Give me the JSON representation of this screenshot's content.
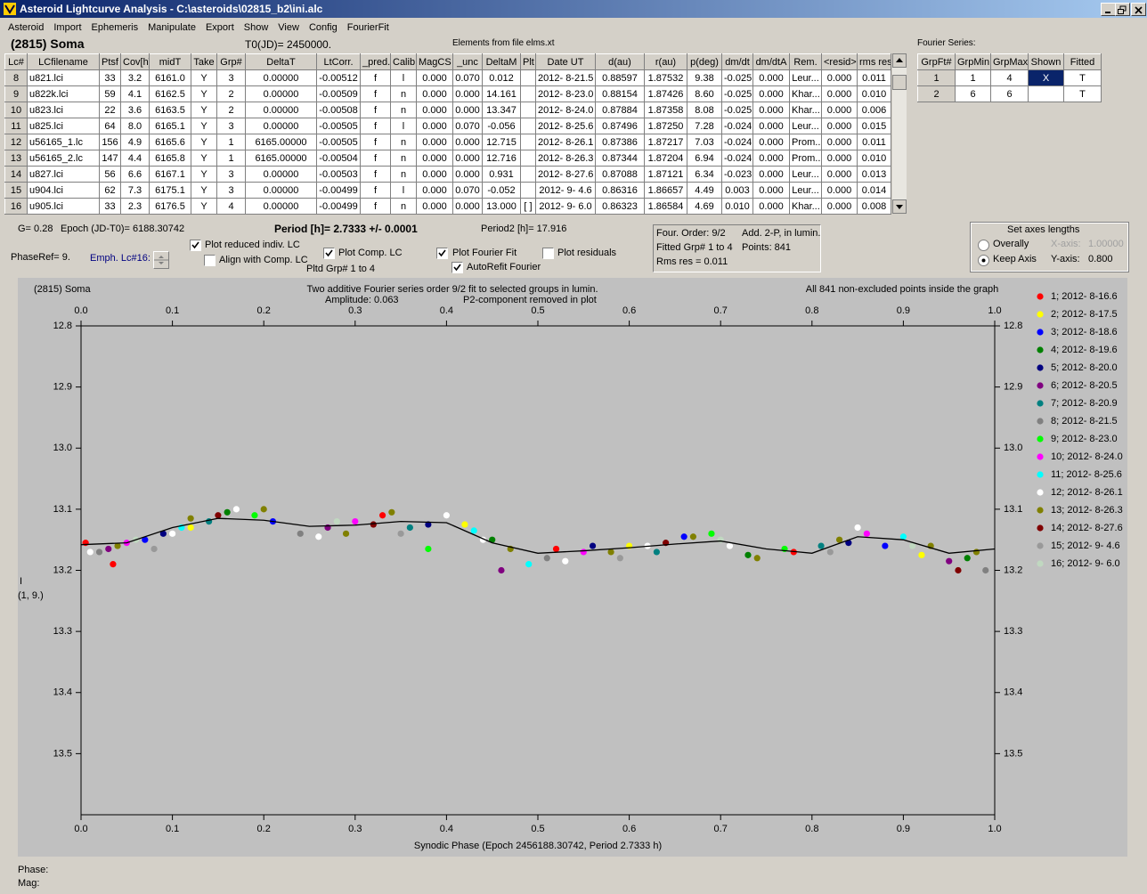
{
  "window": {
    "title": "Asteroid Lightcurve Analysis - C:\\asteroids\\02815_b2\\ini.alc"
  },
  "menu": [
    "Asteroid",
    "Import",
    "Ephemeris",
    "Manipulate",
    "Export",
    "Show",
    "View",
    "Config",
    "FourierFit"
  ],
  "header": {
    "asteroid": "(2815) Soma",
    "t0": "T0(JD)= 2450000.",
    "elements": "Elements from file elms.xt",
    "fourier_label": "Fourier Series:"
  },
  "table": {
    "columns": [
      "Lc#",
      "LCfilename",
      "Ptsf",
      "Cov[h]",
      "midT",
      "Take",
      "Grp#",
      "DeltaT",
      "LtCorr.",
      "_pred.",
      "Calib",
      "MagCS",
      "_unc",
      "DeltaM",
      "Plt",
      "Date UT",
      "d(au)",
      "r(au)",
      "p(deg)",
      "dm/dt",
      "dm/dtA",
      "Rem.",
      "<resid>",
      "rms res"
    ],
    "rows": [
      [
        "8",
        "u821.lci",
        "33",
        "3.2",
        "6161.0",
        "Y",
        "3",
        "0.00000",
        "-0.00512",
        "f",
        "l",
        "0.000",
        "0.070",
        "0.012",
        null,
        "2012- 8-21.5",
        "0.88597",
        "1.87532",
        "9.38",
        "-0.025",
        "0.000",
        "Leur...",
        "0.000",
        "0.011"
      ],
      [
        "9",
        "u822k.lci",
        "59",
        "4.1",
        "6162.5",
        "Y",
        "2",
        "0.00000",
        "-0.00509",
        "f",
        "n",
        "0.000",
        "0.000",
        "14.161",
        null,
        "2012- 8-23.0",
        "0.88154",
        "1.87426",
        "8.60",
        "-0.025",
        "0.000",
        "Khar...",
        "0.000",
        "0.010"
      ],
      [
        "10",
        "u823.lci",
        "22",
        "3.6",
        "6163.5",
        "Y",
        "2",
        "0.00000",
        "-0.00508",
        "f",
        "n",
        "0.000",
        "0.000",
        "13.347",
        null,
        "2012- 8-24.0",
        "0.87884",
        "1.87358",
        "8.08",
        "-0.025",
        "0.000",
        "Khar...",
        "0.000",
        "0.006"
      ],
      [
        "11",
        "u825.lci",
        "64",
        "8.0",
        "6165.1",
        "Y",
        "3",
        "0.00000",
        "-0.00505",
        "f",
        "l",
        "0.000",
        "0.070",
        "-0.056",
        null,
        "2012- 8-25.6",
        "0.87496",
        "1.87250",
        "7.28",
        "-0.024",
        "0.000",
        "Leur...",
        "0.000",
        "0.015"
      ],
      [
        "12",
        "u56165_1.lc",
        "156",
        "4.9",
        "6165.6",
        "Y",
        "1",
        "6165.00000",
        "-0.00505",
        "f",
        "n",
        "0.000",
        "0.000",
        "12.715",
        null,
        "2012- 8-26.1",
        "0.87386",
        "1.87217",
        "7.03",
        "-0.024",
        "0.000",
        "Prom...",
        "0.000",
        "0.011"
      ],
      [
        "13",
        "u56165_2.lc",
        "147",
        "4.4",
        "6165.8",
        "Y",
        "1",
        "6165.00000",
        "-0.00504",
        "f",
        "n",
        "0.000",
        "0.000",
        "12.716",
        null,
        "2012- 8-26.3",
        "0.87344",
        "1.87204",
        "6.94",
        "-0.024",
        "0.000",
        "Prom...",
        "0.000",
        "0.010"
      ],
      [
        "14",
        "u827.lci",
        "56",
        "6.6",
        "6167.1",
        "Y",
        "3",
        "0.00000",
        "-0.00503",
        "f",
        "n",
        "0.000",
        "0.000",
        "0.931",
        null,
        "2012- 8-27.6",
        "0.87088",
        "1.87121",
        "6.34",
        "-0.023",
        "0.000",
        "Leur...",
        "0.000",
        "0.013"
      ],
      [
        "15",
        "u904.lci",
        "62",
        "7.3",
        "6175.1",
        "Y",
        "3",
        "0.00000",
        "-0.00499",
        "f",
        "l",
        "0.000",
        "0.070",
        "-0.052",
        null,
        "2012- 9- 4.6",
        "0.86316",
        "1.86657",
        "4.49",
        "0.003",
        "0.000",
        "Leur...",
        "0.000",
        "0.014"
      ],
      [
        "16",
        "u905.lci",
        "33",
        "2.3",
        "6176.5",
        "Y",
        "4",
        "0.00000",
        "-0.00499",
        "f",
        "n",
        "0.000",
        "0.000",
        "13.000",
        "[ ]",
        "2012- 9- 6.0",
        "0.86323",
        "1.86584",
        "4.69",
        "0.010",
        "0.000",
        "Khar...",
        "0.000",
        "0.008"
      ]
    ]
  },
  "fourier_table": {
    "columns": [
      "GrpFt#",
      "GrpMin",
      "GrpMax",
      "Shown",
      "Fitted"
    ],
    "rows": [
      [
        "1",
        "1",
        "4",
        "X",
        "T"
      ],
      [
        "2",
        "6",
        "6",
        null,
        "T"
      ]
    ]
  },
  "info": {
    "g": "G= 0.28",
    "epoch": "Epoch (JD-T0)= 6188.30742",
    "period": "Period [h]= 2.7333 +/- 0.0001",
    "period2": "Period2 [h]= 17.916",
    "phaseref": "PhaseRef= 9.",
    "emph": "Emph. Lc#16:",
    "pltd_grp": "Pltd Grp#  1  to  4"
  },
  "controls": [
    {
      "label": "Plot reduced indiv. LC",
      "checked": true
    },
    {
      "label": "Align with Comp. LC",
      "checked": false
    },
    {
      "label": "Plot Comp. LC",
      "checked": true
    },
    {
      "label": "Plot Fourier Fit",
      "checked": true
    },
    {
      "label": "AutoRefit Fourier",
      "checked": true
    },
    {
      "label": "Plot residuals",
      "checked": false
    }
  ],
  "fit_box": {
    "order": "Four. Order:  9/2",
    "mode": "Add. 2-P, in lumin.",
    "fitted": "Fitted Grp# 1 to 4",
    "points": "Points: 841",
    "rms": "Rms res     = 0.011"
  },
  "axes_box": {
    "title": "Set axes lengths",
    "options": [
      {
        "label": "Overally",
        "checked": false
      },
      {
        "label": "Keep Axis",
        "checked": true
      }
    ],
    "x_label": "X-axis:",
    "x_value": "1.00000",
    "y_label": "Y-axis:",
    "y_value": "0.800"
  },
  "status": {
    "phase": "Phase:",
    "mag": "Mag:"
  },
  "chart_data": {
    "type": "scatter",
    "title": "(2815) Soma",
    "subtitle": "Two additive Fourier series order 9/2 fit to selected groups in lumin.",
    "annotations": [
      "Amplitude: 0.063",
      "P2-component removed in plot",
      "All 841 non-excluded points inside the graph"
    ],
    "x_label": "Synodic Phase (Epoch 2456188.30742, Period 2.7333 h)",
    "y_label": "I",
    "y_label2": "(1, 9.)",
    "xlim": [
      0,
      1
    ],
    "ylim": [
      12.8,
      13.6
    ],
    "y_inverted": true,
    "grid": false,
    "xticks": [
      {
        "value": 0,
        "label": "0.0"
      },
      0.1,
      0.2,
      0.3,
      0.4,
      0.5,
      0.6,
      0.7,
      0.8,
      0.9,
      {
        "value": 1,
        "label": "1.0"
      }
    ],
    "yticks": [
      12.8,
      12.9,
      {
        "value": 13,
        "label": "13.0"
      },
      13.1,
      13.2,
      13.3,
      13.4,
      13.5
    ],
    "curve": {
      "color": "#000000",
      "x": [
        0,
        0.05,
        0.1,
        0.15,
        0.2,
        0.25,
        0.3,
        0.35,
        0.4,
        0.45,
        0.5,
        0.55,
        0.6,
        0.65,
        0.7,
        0.75,
        0.8,
        0.85,
        0.9,
        0.95,
        1
      ],
      "values": [
        13.158,
        13.155,
        13.13,
        13.115,
        13.118,
        13.128,
        13.126,
        13.12,
        13.122,
        13.155,
        13.172,
        13.168,
        13.163,
        13.157,
        13.152,
        13.165,
        13.172,
        13.145,
        13.15,
        13.172,
        13.165
      ]
    },
    "series": [
      {
        "name": "1; 2012- 8-16.6",
        "color": "#ff0000",
        "x": [
          0.005,
          0.035,
          0.33,
          0.52,
          0.78
        ],
        "values": [
          13.155,
          13.19,
          13.11,
          13.165,
          13.17
        ]
      },
      {
        "name": "2; 2012- 8-17.5",
        "color": "#ffff00",
        "x": [
          0.12,
          0.42,
          0.6,
          0.92
        ],
        "values": [
          13.13,
          13.125,
          13.16,
          13.175
        ]
      },
      {
        "name": "3; 2012- 8-18.6",
        "color": "#0000ff",
        "x": [
          0.07,
          0.21,
          0.66,
          0.88
        ],
        "values": [
          13.15,
          13.12,
          13.145,
          13.16
        ]
      },
      {
        "name": "4; 2012- 8-19.6",
        "color": "#008000",
        "x": [
          0.16,
          0.45,
          0.73,
          0.97
        ],
        "values": [
          13.105,
          13.15,
          13.175,
          13.18
        ]
      },
      {
        "name": "5; 2012- 8-20.0",
        "color": "#000080",
        "x": [
          0.09,
          0.38,
          0.56,
          0.84
        ],
        "values": [
          13.14,
          13.125,
          13.16,
          13.155
        ]
      },
      {
        "name": "6; 2012- 8-20.5",
        "color": "#800080",
        "x": [
          0.03,
          0.27,
          0.46,
          0.95
        ],
        "values": [
          13.165,
          13.13,
          13.2,
          13.185
        ]
      },
      {
        "name": "7; 2012- 8-20.9",
        "color": "#008080",
        "x": [
          0.14,
          0.36,
          0.63,
          0.81
        ],
        "values": [
          13.12,
          13.13,
          13.17,
          13.16
        ]
      },
      {
        "name": "8; 2012- 8-21.5",
        "color": "#808080",
        "x": [
          0.02,
          0.24,
          0.51,
          0.99
        ],
        "values": [
          13.17,
          13.14,
          13.18,
          13.2
        ]
      },
      {
        "name": "9; 2012- 8-23.0",
        "color": "#00ff00",
        "x": [
          0.19,
          0.38,
          0.69,
          0.77
        ],
        "values": [
          13.11,
          13.165,
          13.14,
          13.165
        ]
      },
      {
        "name": "10; 2012- 8-24.0",
        "color": "#ff00ff",
        "x": [
          0.05,
          0.3,
          0.55,
          0.86
        ],
        "values": [
          13.155,
          13.12,
          13.17,
          13.14
        ]
      },
      {
        "name": "11; 2012- 8-25.6",
        "color": "#00ffff",
        "x": [
          0.11,
          0.43,
          0.49,
          0.9
        ],
        "values": [
          13.13,
          13.135,
          13.19,
          13.145
        ]
      },
      {
        "name": "12; 2012- 8-26.1",
        "color": "#ffffff",
        "x": [
          0.01,
          0.1,
          0.17,
          0.26,
          0.4,
          0.44,
          0.53,
          0.62,
          0.71,
          0.85
        ],
        "values": [
          13.17,
          13.14,
          13.1,
          13.145,
          13.11,
          13.15,
          13.185,
          13.16,
          13.16,
          13.13
        ]
      },
      {
        "name": "13; 2012- 8-26.3",
        "color": "#808000",
        "x": [
          0.04,
          0.12,
          0.2,
          0.29,
          0.34,
          0.47,
          0.58,
          0.67,
          0.74,
          0.83,
          0.93,
          0.98
        ],
        "values": [
          13.16,
          13.115,
          13.1,
          13.14,
          13.105,
          13.165,
          13.17,
          13.145,
          13.18,
          13.15,
          13.16,
          13.17
        ]
      },
      {
        "name": "14; 2012- 8-27.6",
        "color": "#800000",
        "x": [
          0.15,
          0.32,
          0.64,
          0.96
        ],
        "values": [
          13.11,
          13.125,
          13.155,
          13.2
        ]
      },
      {
        "name": "15; 2012- 9- 4.6",
        "color": "#999999",
        "x": [
          0.08,
          0.35,
          0.59,
          0.82
        ],
        "values": [
          13.165,
          13.14,
          13.18,
          13.17
        ]
      },
      {
        "name": "16; 2012- 9- 6.0",
        "color": "#c0d8c0",
        "x": [
          0.06,
          0.28,
          0.7,
          0.91
        ],
        "values": [
          13.15,
          13.12,
          13.15,
          13.16
        ]
      }
    ]
  }
}
